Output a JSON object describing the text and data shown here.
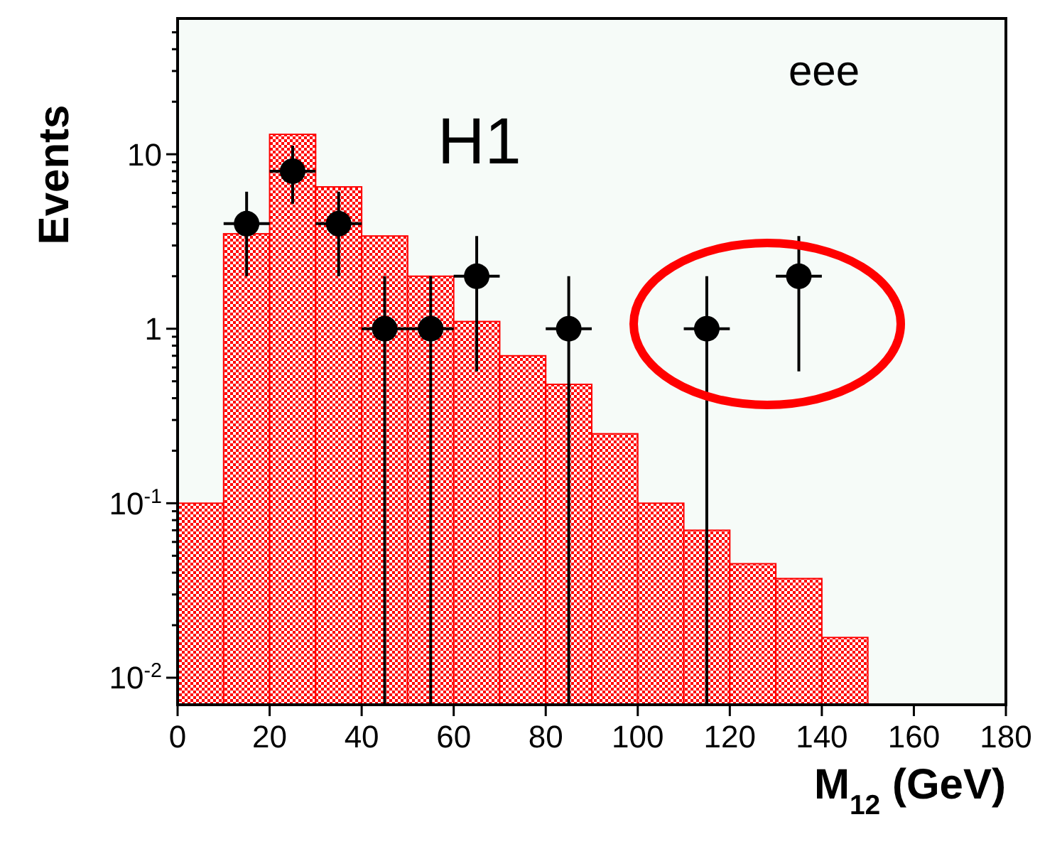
{
  "chart_data": {
    "type": "histogram",
    "xlabel": "M$_{12}$ (GeV)",
    "ylabel": "Events",
    "annotations": [
      "H1",
      "eee"
    ],
    "bins": [
      0,
      10,
      20,
      30,
      40,
      50,
      60,
      70,
      80,
      90,
      100,
      110,
      120,
      130,
      140,
      150,
      160,
      170,
      180
    ],
    "log": "y",
    "xlim": [
      0,
      180
    ],
    "ylim": [
      0.007,
      60
    ],
    "xticks": [
      0,
      20,
      40,
      60,
      80,
      100,
      120,
      140,
      160,
      180
    ],
    "yticks": [
      {
        "value": 0.01,
        "label": "10$^{-2}$"
      },
      {
        "value": 0.02,
        "label": null
      },
      {
        "value": 0.03,
        "label": null
      },
      {
        "value": 0.04,
        "label": null
      },
      {
        "value": 0.05,
        "label": null
      },
      {
        "value": 0.06,
        "label": null
      },
      {
        "value": 0.07,
        "label": null
      },
      {
        "value": 0.08,
        "label": null
      },
      {
        "value": 0.09,
        "label": null
      },
      {
        "value": 0.1,
        "label": "10$^{-1}$"
      },
      {
        "value": 0.2,
        "label": null
      },
      {
        "value": 0.3,
        "label": null
      },
      {
        "value": 0.4,
        "label": null
      },
      {
        "value": 0.5,
        "label": null
      },
      {
        "value": 0.6,
        "label": null
      },
      {
        "value": 0.7,
        "label": null
      },
      {
        "value": 0.8,
        "label": null
      },
      {
        "value": 0.9,
        "label": null
      },
      {
        "value": 1,
        "label": "1"
      },
      {
        "value": 2,
        "label": null
      },
      {
        "value": 3,
        "label": null
      },
      {
        "value": 4,
        "label": null
      },
      {
        "value": 5,
        "label": null
      },
      {
        "value": 6,
        "label": null
      },
      {
        "value": 7,
        "label": null
      },
      {
        "value": 8,
        "label": null
      },
      {
        "value": 9,
        "label": null
      },
      {
        "value": 10,
        "label": "10"
      },
      {
        "value": 20,
        "label": null
      },
      {
        "value": 30,
        "label": null
      },
      {
        "value": 40,
        "label": null
      },
      {
        "value": 50,
        "label": null
      }
    ],
    "series": [
      {
        "color": "#ff0000",
        "values": [
          0.1,
          3.5,
          13,
          6.5,
          3.4,
          2.0,
          1.1,
          0.7,
          0.48,
          0.25,
          0.1,
          0.07,
          0.045,
          0.037,
          0.017,
          null,
          null,
          null
        ]
      },
      {
        "type": "scatter",
        "color": "#000000",
        "marker": "circle",
        "x": [
          15,
          25,
          35,
          45,
          55,
          65,
          85,
          115,
          135
        ],
        "values": [
          4,
          8,
          4,
          1,
          1,
          2,
          1,
          1,
          2
        ],
        "errors": [
          [
            2.0,
            6.1
          ],
          [
            5.2,
            11.2
          ],
          [
            2.0,
            6.1
          ],
          [
            0.007,
            2.0
          ],
          [
            0.007,
            2.0
          ],
          [
            0.57,
            3.4
          ],
          [
            0.007,
            2.0
          ],
          [
            0.007,
            2.0
          ],
          [
            0.57,
            3.4
          ]
        ],
        "xerrors": [
          5,
          5,
          5,
          5,
          5,
          5,
          5,
          5,
          5
        ]
      }
    ]
  }
}
